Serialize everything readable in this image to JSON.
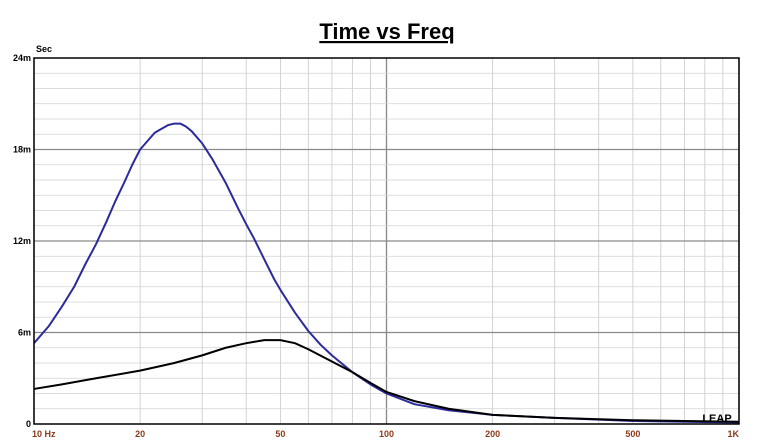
{
  "chart_data": {
    "type": "line",
    "title": "Time vs Freq",
    "ylabel": "Sec",
    "xlabel": "",
    "x_scale": "log",
    "xlim": [
      10,
      1000
    ],
    "ylim": [
      0,
      0.024
    ],
    "grid": true,
    "x_ticks": [
      {
        "value": 10,
        "label": "10  Hz"
      },
      {
        "value": 20,
        "label": "20"
      },
      {
        "value": 50,
        "label": "50"
      },
      {
        "value": 100,
        "label": "100"
      },
      {
        "value": 200,
        "label": "200"
      },
      {
        "value": 500,
        "label": "500"
      },
      {
        "value": 1000,
        "label": "1K"
      }
    ],
    "y_ticks": [
      {
        "value": 0,
        "label": "0"
      },
      {
        "value": 0.006,
        "label": "6m"
      },
      {
        "value": 0.012,
        "label": "12m"
      },
      {
        "value": 0.018,
        "label": "18m"
      },
      {
        "value": 0.024,
        "label": "24m"
      }
    ],
    "series": [
      {
        "color": "#2b2b9c",
        "x": [
          10,
          11,
          12,
          13,
          14,
          15,
          16,
          17,
          18,
          19,
          20,
          22,
          24,
          25,
          26,
          27,
          28,
          30,
          32,
          35,
          38,
          40,
          42,
          45,
          48,
          50,
          55,
          60,
          65,
          70,
          80,
          90,
          100,
          120,
          150,
          200,
          300,
          500,
          700,
          1000
        ],
        "y": [
          0.0053,
          0.0064,
          0.0077,
          0.009,
          0.0105,
          0.0118,
          0.0132,
          0.0146,
          0.0158,
          0.017,
          0.018,
          0.0191,
          0.0196,
          0.0197,
          0.0197,
          0.0195,
          0.0192,
          0.0184,
          0.0174,
          0.0158,
          0.0141,
          0.0131,
          0.0122,
          0.0108,
          0.0095,
          0.0088,
          0.0073,
          0.0061,
          0.0052,
          0.0045,
          0.0034,
          0.0026,
          0.002,
          0.0013,
          0.0009,
          0.0006,
          0.0004,
          0.0002,
          0.00015,
          0.0001
        ]
      },
      {
        "color": "#000000",
        "x": [
          10,
          12,
          15,
          20,
          25,
          30,
          35,
          40,
          45,
          48,
          50,
          55,
          60,
          70,
          80,
          90,
          100,
          120,
          150,
          200,
          300,
          500,
          700,
          1000
        ],
        "y": [
          0.0023,
          0.0026,
          0.003,
          0.0035,
          0.004,
          0.0045,
          0.005,
          0.0053,
          0.0055,
          0.0055,
          0.0055,
          0.0053,
          0.0049,
          0.0041,
          0.0034,
          0.0027,
          0.0021,
          0.0015,
          0.001,
          0.0006,
          0.0004,
          0.00025,
          0.0002,
          0.00015
        ]
      }
    ]
  },
  "logo_text": "LEAP"
}
